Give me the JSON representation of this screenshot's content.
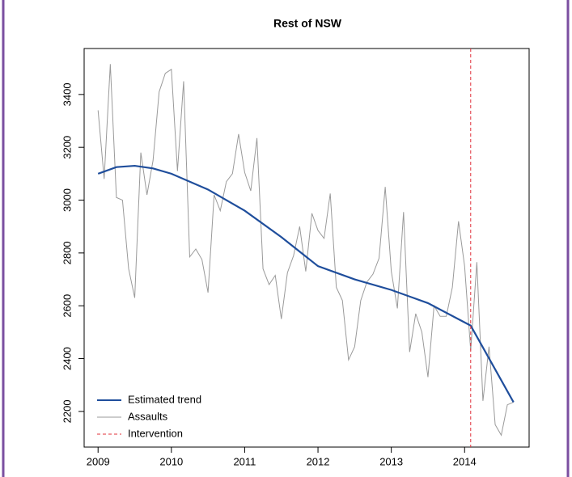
{
  "chart_data": {
    "type": "line",
    "title": "Rest of NSW",
    "x": [
      2009,
      2009.083,
      2009.167,
      2009.25,
      2009.333,
      2009.417,
      2009.5,
      2009.583,
      2009.667,
      2009.75,
      2009.833,
      2009.917,
      2010,
      2010.083,
      2010.167,
      2010.25,
      2010.333,
      2010.417,
      2010.5,
      2010.583,
      2010.667,
      2010.75,
      2010.833,
      2010.917,
      2011,
      2011.083,
      2011.167,
      2011.25,
      2011.333,
      2011.417,
      2011.5,
      2011.583,
      2011.667,
      2011.75,
      2011.833,
      2011.917,
      2012,
      2012.083,
      2012.167,
      2012.25,
      2012.333,
      2012.417,
      2012.5,
      2012.583,
      2012.667,
      2012.75,
      2012.833,
      2012.917,
      2013,
      2013.083,
      2013.167,
      2013.25,
      2013.333,
      2013.417,
      2013.5,
      2013.583,
      2013.667,
      2013.75,
      2013.833,
      2013.917,
      2014,
      2014.083,
      2014.167,
      2014.25,
      2014.333,
      2014.417,
      2014.5,
      2014.583,
      2014.667
    ],
    "series": [
      {
        "name": "Estimated trend",
        "color": "#1f4e9c",
        "x": [
          2009,
          2009.25,
          2009.5,
          2009.75,
          2010,
          2010.5,
          2011,
          2011.5,
          2012,
          2012.5,
          2013,
          2013.5,
          2014.083,
          2014.667
        ],
        "values": [
          3100,
          3125,
          3130,
          3120,
          3100,
          3040,
          2960,
          2860,
          2750,
          2700,
          2660,
          2610,
          2525,
          2235
        ]
      },
      {
        "name": "Assaults",
        "color": "#9a9a9a",
        "values": [
          3340,
          3080,
          3515,
          3010,
          3000,
          2740,
          2630,
          3180,
          3020,
          3150,
          3410,
          3480,
          3495,
          3110,
          3450,
          2785,
          2815,
          2775,
          2650,
          3020,
          2960,
          3070,
          3100,
          3250,
          3105,
          3035,
          3235,
          2740,
          2680,
          2715,
          2550,
          2725,
          2790,
          2900,
          2730,
          2950,
          2885,
          2855,
          3025,
          2670,
          2620,
          2395,
          2445,
          2620,
          2690,
          2720,
          2780,
          3050,
          2730,
          2590,
          2955,
          2425,
          2570,
          2500,
          2330,
          2600,
          2560,
          2560,
          2670,
          2920,
          2750,
          2430,
          2765,
          2240,
          2445,
          2150,
          2110,
          2225,
          2235
        ]
      }
    ],
    "vlines": [
      {
        "name": "Intervention",
        "x": 2014.083,
        "color": "#e0303a"
      }
    ],
    "xlim": [
      2008.81,
      2014.88
    ],
    "xticks": [
      2009,
      2010,
      2011,
      2012,
      2013,
      2014
    ],
    "ylim": [
      2065,
      3574
    ],
    "yticks": [
      2200,
      2400,
      2600,
      2800,
      3000,
      3200,
      3400
    ],
    "legend": "bottom-left"
  }
}
